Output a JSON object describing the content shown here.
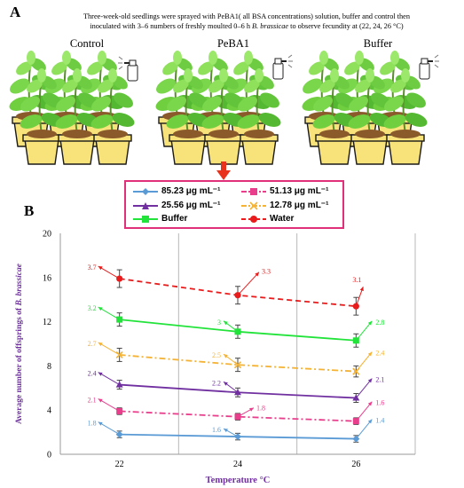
{
  "panel_a": {
    "letter": "A",
    "description_line1": "Three-week-old seedlings were sprayed with PeBA1( all BSA concentrations) solution, buffer and control then",
    "description_line2_prefix": "inoculated with  3–6 numbers of freshly moulted 0–6 h ",
    "description_line2_species": "B. brassicae",
    "description_line2_suffix": " to observe fecundity at (22, 24, 26 °C)",
    "group_labels": [
      "Control",
      "PeBA1",
      "Buffer"
    ],
    "icons": [
      "plant-pot-icon",
      "spray-bottle-icon",
      "arrow-down-icon"
    ]
  },
  "panel_b": {
    "letter": "B"
  },
  "colors": {
    "series_85": "#5b9bd5",
    "series_51": "#e83e8c",
    "series_25": "#7030a0",
    "series_12": "#f5b335",
    "series_buffer": "#22e33a",
    "series_water": "#e81c1c",
    "legend_border": "#e0307a",
    "axis_label": "#7030a0",
    "arrow": "#e8321b"
  },
  "chart_data": {
    "type": "line",
    "ylabel_prefix": "Average number of offsprings of ",
    "ylabel_species": "B. brassicae",
    "xlabel": "Temperature °C",
    "x": [
      22,
      24,
      26
    ],
    "x_tick_labels": [
      "22",
      "24",
      "26"
    ],
    "xlim": [
      21,
      27
    ],
    "ylim": [
      0,
      20
    ],
    "y_ticks": [
      0,
      4,
      8,
      12,
      16,
      20
    ],
    "grid": "vertical",
    "legend_position": "top",
    "series": [
      {
        "name": "85.23 μg mL⁻¹",
        "values": [
          1.8,
          1.6,
          1.4
        ],
        "errors": [
          0.3,
          0.3,
          0.3
        ],
        "color": "#5b9bd5",
        "marker": "diamond",
        "dash": "solid",
        "slope_labels": [
          "1.8",
          "1.6",
          "1.4"
        ]
      },
      {
        "name": "51.13 μg mL⁻¹",
        "values": [
          3.9,
          3.4,
          3.0
        ],
        "errors": [
          0.3,
          0.3,
          0.3
        ],
        "color": "#e83e8c",
        "marker": "square",
        "dash": "dashdot",
        "slope_labels": [
          "2.1",
          "1.8",
          "1.6"
        ]
      },
      {
        "name": "25.56 μg mL⁻¹",
        "values": [
          6.3,
          5.6,
          5.1
        ],
        "errors": [
          0.4,
          0.4,
          0.4
        ],
        "color": "#7030a0",
        "marker": "triangle",
        "dash": "solid",
        "slope_labels": [
          "2.4",
          "2.2",
          "2.1"
        ]
      },
      {
        "name": "12.78 μg mL⁻¹",
        "values": [
          9.0,
          8.1,
          7.5
        ],
        "errors": [
          0.6,
          0.6,
          0.5
        ],
        "color": "#f5b335",
        "marker": "x",
        "dash": "dashdot",
        "slope_labels": [
          "2.7",
          "2.5",
          "2.4"
        ]
      },
      {
        "name": "Buffer",
        "values": [
          12.2,
          11.1,
          10.3
        ],
        "errors": [
          0.6,
          0.6,
          0.6
        ],
        "color": "#22e33a",
        "marker": "square",
        "dash": "solid",
        "slope_labels": [
          "3.2",
          "3",
          "2.8"
        ]
      },
      {
        "name": "Water",
        "values": [
          15.9,
          14.4,
          13.4
        ],
        "errors": [
          0.8,
          0.8,
          0.8
        ],
        "color": "#e81c1c",
        "marker": "circle",
        "dash": "dashed",
        "slope_labels": [
          "3.7",
          "3.3",
          "3.1"
        ]
      }
    ]
  }
}
